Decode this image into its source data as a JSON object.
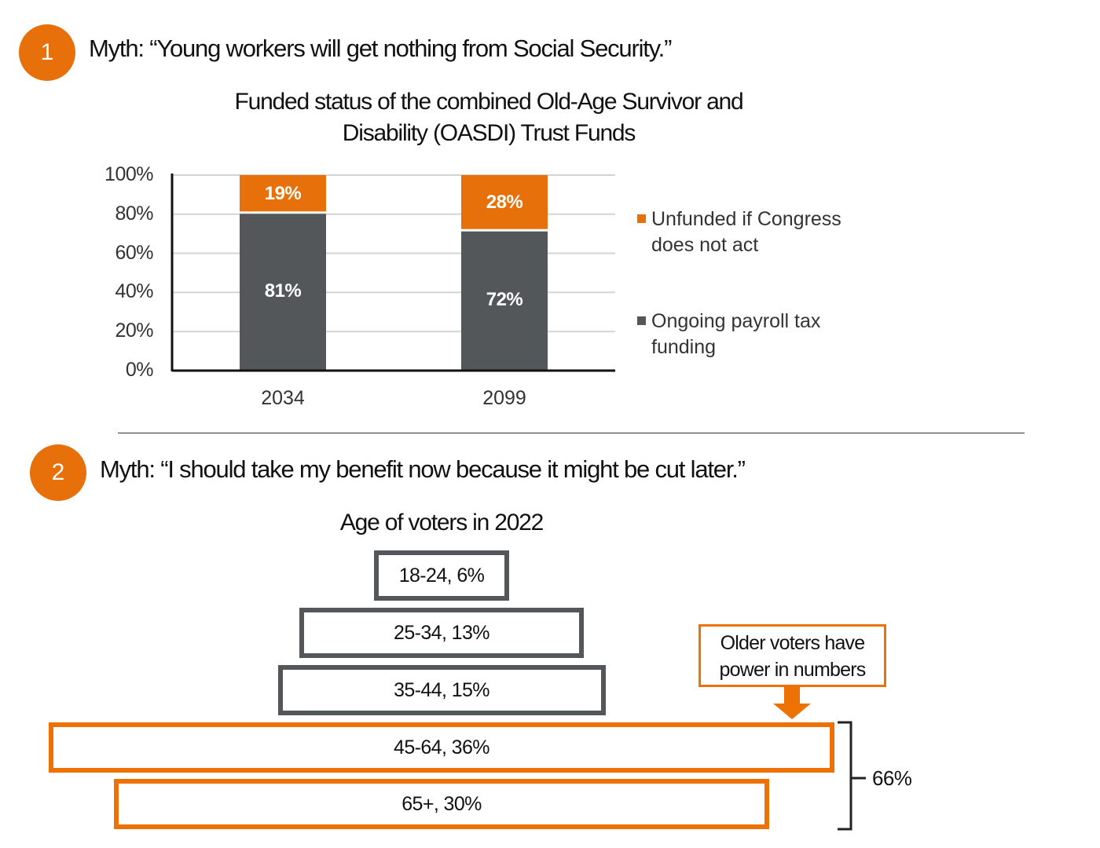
{
  "section1": {
    "number": "1",
    "myth": "Myth: “Young workers will get nothing from Social Security.”"
  },
  "chart_data": [
    {
      "type": "bar",
      "stacked": true,
      "title": "Funded status of the combined Old-Age Survivor and Disability (OASDI) Trust Funds",
      "title_lines": [
        "Funded status of the combined Old-Age Survivor and",
        "Disability (OASDI) Trust Funds"
      ],
      "categories": [
        "2034",
        "2099"
      ],
      "series": [
        {
          "name": "Ongoing payroll tax funding",
          "values": [
            81,
            72
          ],
          "labels": [
            "81%",
            "72%"
          ],
          "color": "#54575a"
        },
        {
          "name": "Unfunded if Congress does not act",
          "values": [
            19,
            28
          ],
          "labels": [
            "19%",
            "28%"
          ],
          "color": "#e8700a"
        }
      ],
      "legend": [
        {
          "lines": [
            "Unfunded if Congress",
            "does not act"
          ],
          "color": "#e8700a"
        },
        {
          "lines": [
            "Ongoing payroll tax",
            "funding"
          ],
          "color": "#54575a"
        }
      ],
      "legend_position": "right",
      "yticks": [
        "0%",
        "20%",
        "40%",
        "60%",
        "80%",
        "100%"
      ],
      "ylim": [
        0,
        100
      ],
      "grid": true,
      "xlabel": "",
      "ylabel": ""
    },
    {
      "type": "bar",
      "orientation": "pyramid",
      "title": "Age of voters in 2022",
      "categories": [
        "18-24",
        "25-34",
        "35-44",
        "45-64",
        "65+"
      ],
      "values": [
        6,
        13,
        15,
        36,
        30
      ],
      "labels": [
        "18-24, 6%",
        "25-34, 13%",
        "35-44, 15%",
        "45-64, 36%",
        "65+, 30%"
      ],
      "highlighted": [
        false,
        false,
        false,
        true,
        true
      ],
      "colors": {
        "default": "#54575a",
        "highlight": "#ee7203"
      },
      "bracket_label": "66%",
      "callout": [
        "Older voters have",
        "power in numbers"
      ]
    }
  ],
  "section2": {
    "number": "2",
    "myth": "Myth: “I should take my benefit now because it might be cut later.”"
  }
}
